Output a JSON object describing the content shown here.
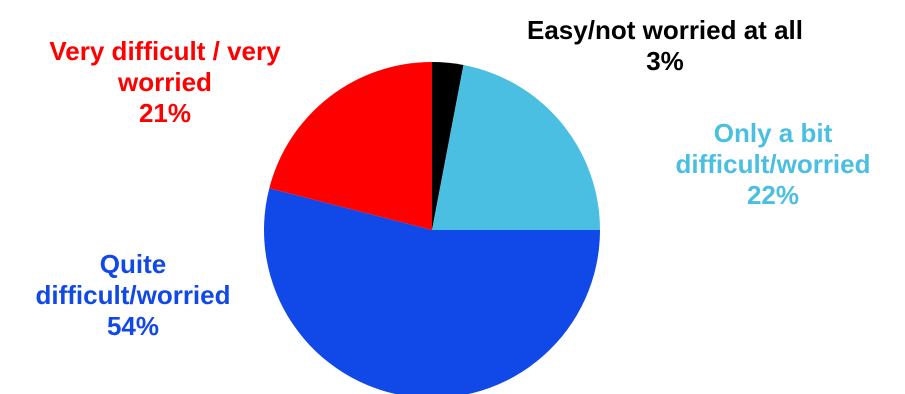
{
  "chart_data": {
    "type": "pie",
    "title": "",
    "slices": [
      {
        "label_lines": [
          "Easy/not worried at all"
        ],
        "value": 3,
        "value_label": "3%",
        "color": "#000000"
      },
      {
        "label_lines": [
          "Only a bit",
          "difficult/worried"
        ],
        "value": 22,
        "value_label": "22%",
        "color": "#4bbfe2"
      },
      {
        "label_lines": [
          "Quite",
          "difficult/worried"
        ],
        "value": 54,
        "value_label": "54%",
        "color": "#1148e8"
      },
      {
        "label_lines": [
          "Very difficult / very",
          "worried"
        ],
        "value": 21,
        "value_label": "21%",
        "color": "#ff0000"
      }
    ],
    "label_colors": [
      "#000000",
      "#4bbfe2",
      "#1148e8",
      "#ff0000"
    ]
  }
}
